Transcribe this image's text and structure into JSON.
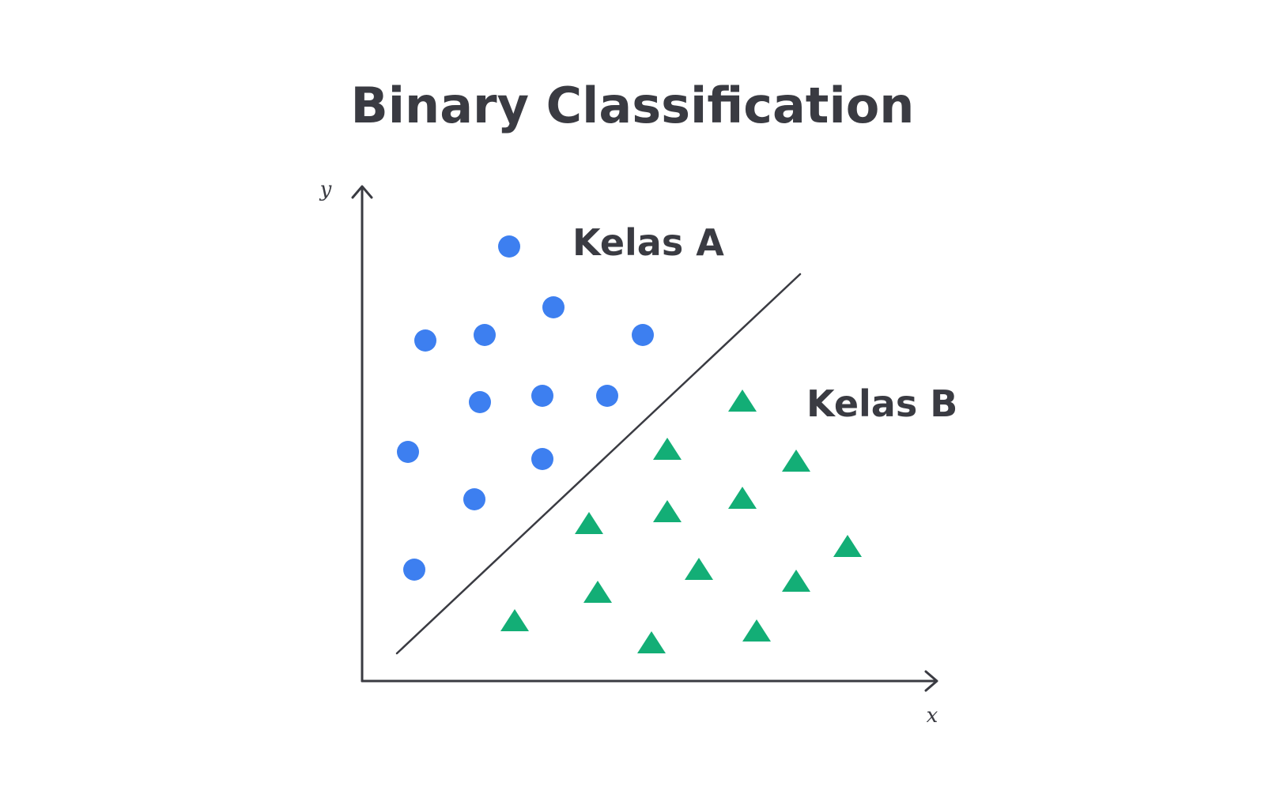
{
  "title": "Binary Classification",
  "class_a": "Kelas A",
  "class_b": "Kelas B",
  "axis_x": "x",
  "axis_y": "y"
}
